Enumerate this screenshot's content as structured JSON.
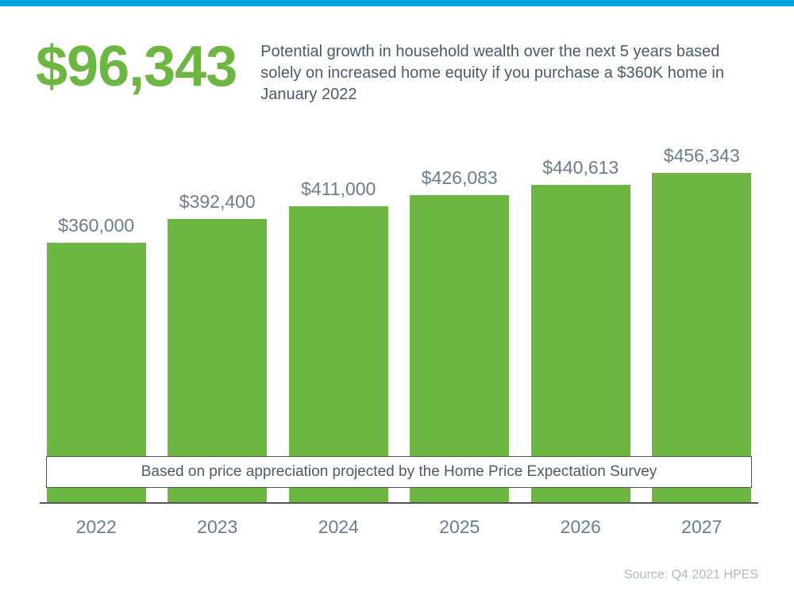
{
  "top_bar_color": "#00a3e0",
  "background_color": "#ffffff",
  "headline": {
    "value": "$96,343",
    "color": "#6db644",
    "font_size": 72,
    "font_weight": 700
  },
  "description": {
    "text": "Potential growth in household wealth over the next 5 years based solely on increased home equity if you purchase a $360K home in January 2022",
    "color": "#4a5a6a",
    "font_size": 20
  },
  "chart": {
    "type": "bar",
    "bar_color": "#6db644",
    "value_label_color": "#6b7c8c",
    "axis_label_color": "#6b7c8c",
    "axis_line_color": "#555555",
    "value_label_fontsize": 23,
    "axis_label_fontsize": 23,
    "ylim_max": 460000,
    "bar_width_pct": 88,
    "bars": [
      {
        "year": "2022",
        "value": 360000,
        "label": "$360,000"
      },
      {
        "year": "2023",
        "value": 392400,
        "label": "$392,400"
      },
      {
        "year": "2024",
        "value": 411000,
        "label": "$411,000"
      },
      {
        "year": "2025",
        "value": 426083,
        "label": "$426,083"
      },
      {
        "year": "2026",
        "value": 440613,
        "label": "$440,613"
      },
      {
        "year": "2027",
        "value": 456343,
        "label": "$456,343"
      }
    ]
  },
  "footnote": {
    "text": "Based on price appreciation projected by the Home Price Expectation Survey",
    "color": "#4a5a6a",
    "background": "#ffffff",
    "border_color": "#555555",
    "font_size": 19
  },
  "source": {
    "text": "Source: Q4 2021 HPES",
    "color": "#b0b8c0",
    "font_size": 16
  }
}
